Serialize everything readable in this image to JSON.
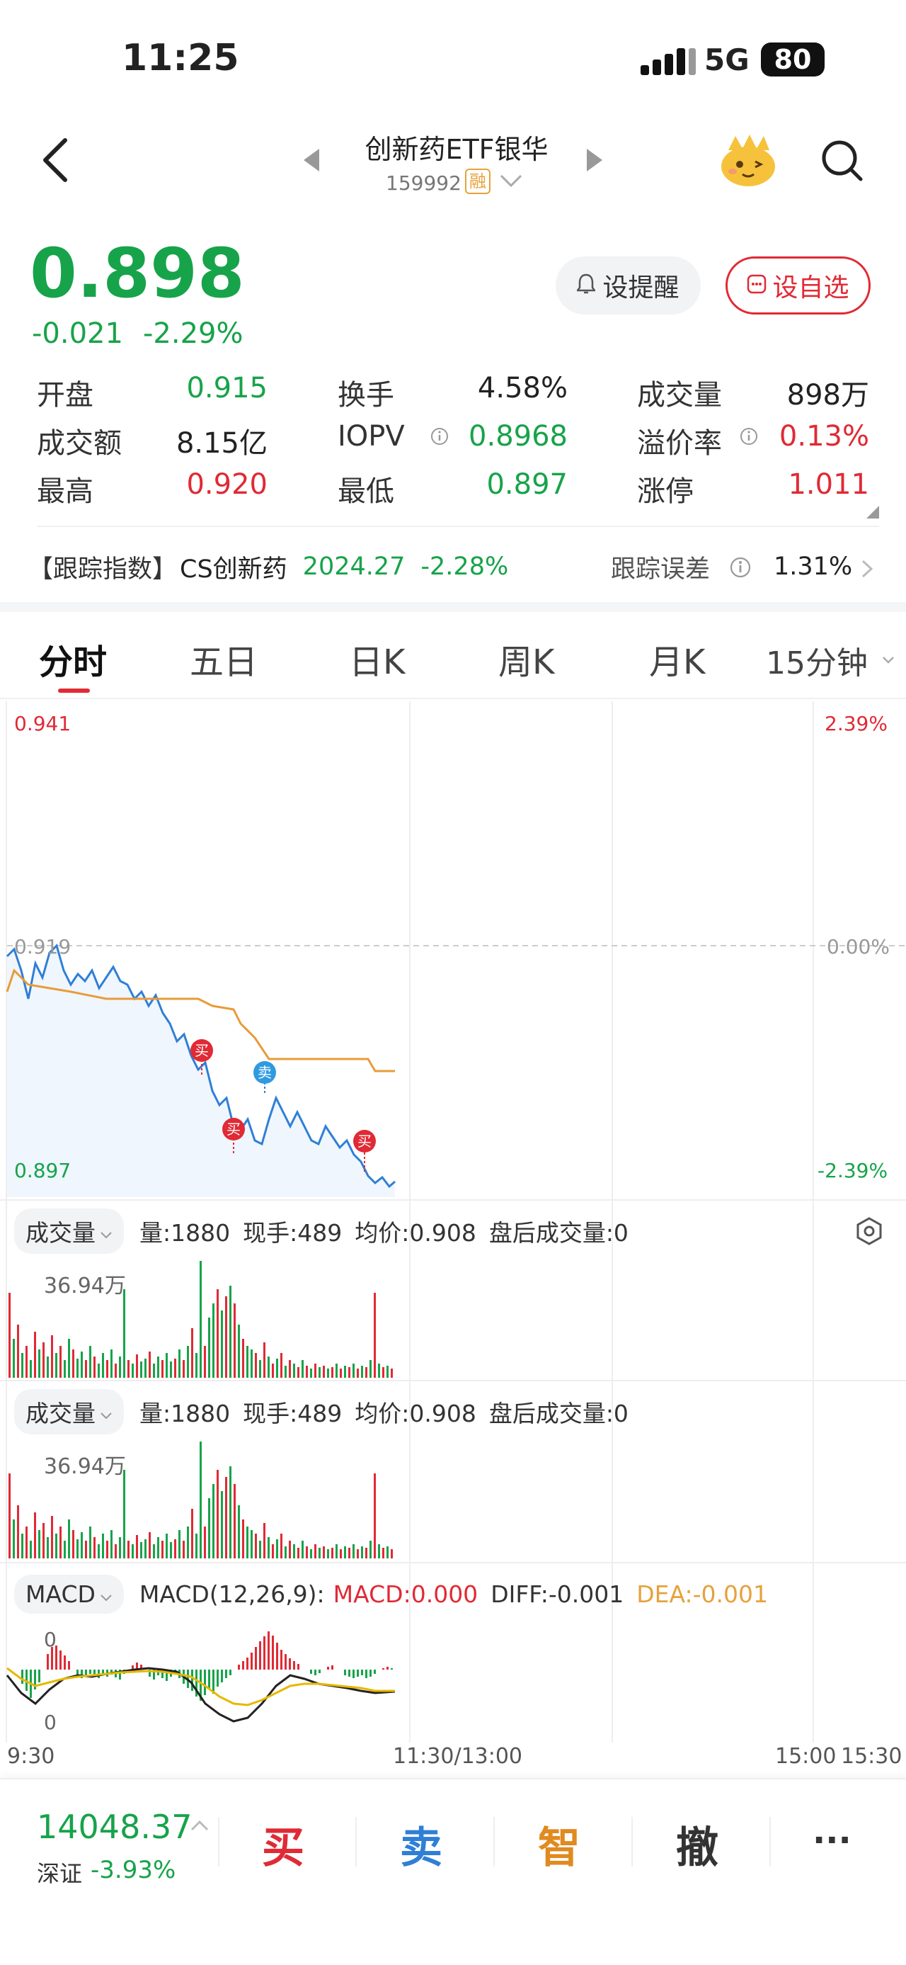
{
  "status": {
    "time": "11:25",
    "network": "5G",
    "battery": "80"
  },
  "header": {
    "title": "创新药ETF银华",
    "code": "159992",
    "badge": "融"
  },
  "quote": {
    "price": "0.898",
    "change": "-0.021",
    "change_pct": "-2.29%",
    "remind_label": "设提醒",
    "watch_label": "设自选"
  },
  "stats": [
    {
      "label": "开盘",
      "value": "0.915",
      "color": "green"
    },
    {
      "label": "换手",
      "value": "4.58%",
      "color": "black"
    },
    {
      "label": "成交量",
      "value": "898万",
      "color": "black"
    },
    {
      "label": "成交额",
      "value": "8.15亿",
      "color": "black"
    },
    {
      "label": "IOPV",
      "value": "0.8968",
      "color": "green"
    },
    {
      "label": "溢价率",
      "value": "0.13%",
      "color": "red"
    },
    {
      "label": "最高",
      "value": "0.920",
      "color": "red"
    },
    {
      "label": "最低",
      "value": "0.897",
      "color": "green"
    },
    {
      "label": "涨停",
      "value": "1.011",
      "color": "red"
    }
  ],
  "track": {
    "label": "【跟踪指数】",
    "name": "CS创新药",
    "value": "2024.27",
    "pct": "-2.28%",
    "err_label": "跟踪误差",
    "err_value": "1.31%"
  },
  "tabs": [
    "分时",
    "五日",
    "日K",
    "周K",
    "月K",
    "15分钟"
  ],
  "chart": {
    "top_price": "0.941",
    "mid_price": "0.919",
    "bottom_price": "0.897",
    "top_pct": "2.39%",
    "mid_pct": "0.00%",
    "bottom_pct": "-2.39%",
    "buy": "买",
    "sell": "卖"
  },
  "vol1": {
    "selector": "成交量",
    "info": [
      "量:1880",
      "现手:489",
      "均价:0.908",
      "盘后成交量:0"
    ],
    "max": "36.94万"
  },
  "vol2": {
    "selector": "成交量",
    "info": [
      "量:1880",
      "现手:489",
      "均价:0.908",
      "盘后成交量:0"
    ],
    "max": "36.94万"
  },
  "macd": {
    "selector": "MACD",
    "params": "MACD(12,26,9):",
    "macd": "MACD:0.000",
    "diff": "DIFF:-0.001",
    "dea": "DEA:-0.001",
    "zero": "0",
    "zero2": "0"
  },
  "time_axis": [
    "9:30",
    "11:30/13:00",
    "15:00",
    "15:30"
  ],
  "bottom": {
    "index_value": "14048.37",
    "index_name": "深证",
    "index_pct": "-3.93%",
    "buy": "买",
    "sell": "卖",
    "smart": "智",
    "cancel": "撤",
    "more": "···"
  },
  "chart_data": {
    "type": "line",
    "x": [
      "9:30",
      "9:45",
      "10:00",
      "10:15",
      "10:30",
      "10:45",
      "11:00",
      "11:15",
      "11:25"
    ],
    "series": [
      {
        "values": [
          0.917,
          0.918,
          0.916,
          0.914,
          0.906,
          0.905,
          0.902,
          0.899,
          0.898
        ]
      },
      {
        "values": [
          0.917,
          0.915,
          0.914,
          0.914,
          0.912,
          0.911,
          0.91,
          0.909,
          0.908
        ]
      }
    ],
    "ylim": [
      0.897,
      0.941
    ]
  }
}
